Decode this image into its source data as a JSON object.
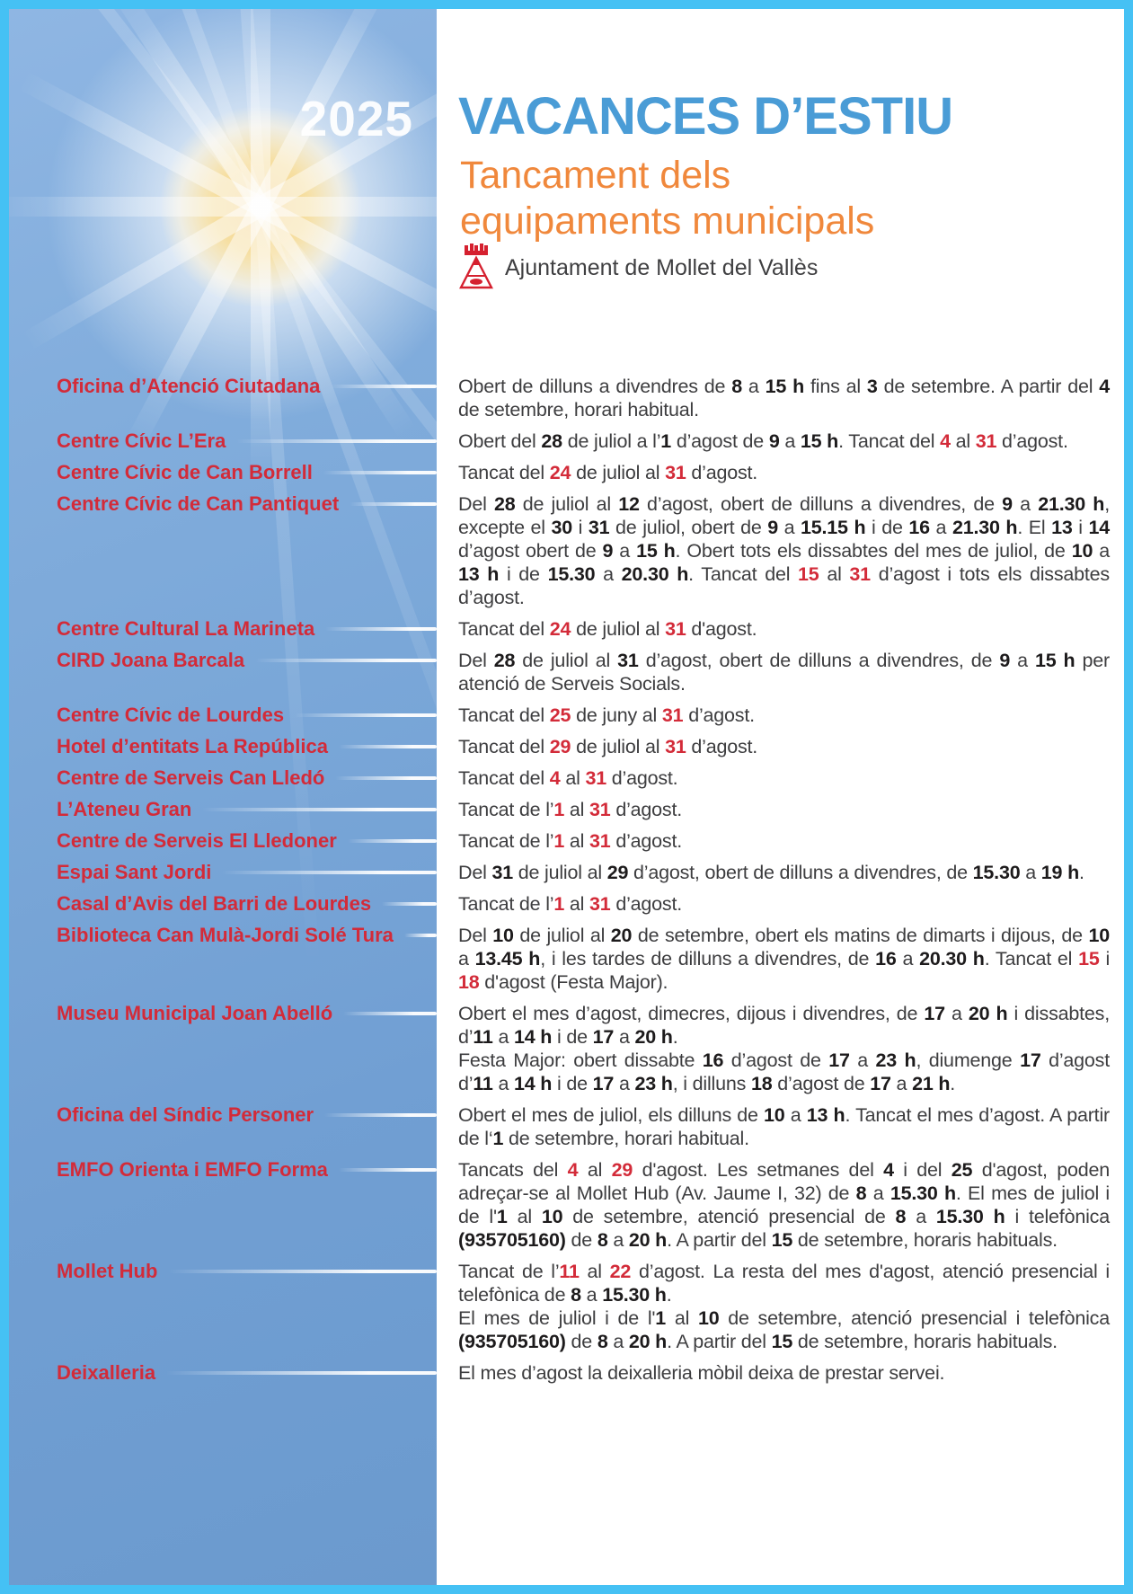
{
  "year": "2025",
  "header": {
    "title": "VACANCES D’ESTIU",
    "subtitle_lines": [
      "Tancament dels",
      "equipaments municipals"
    ],
    "org": "Ajuntament de Mollet del Vallès"
  },
  "colors": {
    "frame": "#45c1f4",
    "title_blue": "#4a9cd6",
    "subtitle_orange": "#f0883c",
    "label_red": "#d32b39",
    "body_text": "#3d3d3f",
    "bold_text": "#1d1b1c",
    "crest_red": "#d5202f"
  },
  "entries": [
    {
      "label": "Oficina d’Atenció Ciutadana",
      "runs": [
        {
          "t": "Obert de dilluns a divendres de "
        },
        {
          "t": "8",
          "s": "b"
        },
        {
          "t": " a "
        },
        {
          "t": "15 h",
          "s": "b"
        },
        {
          "t": " fins al "
        },
        {
          "t": "3",
          "s": "b"
        },
        {
          "t": " de setembre. A partir del "
        },
        {
          "t": "4",
          "s": "b"
        },
        {
          "t": " de setembre, horari habitual."
        }
      ]
    },
    {
      "label": "Centre Cívic L’Era",
      "runs": [
        {
          "t": "Obert del "
        },
        {
          "t": "28",
          "s": "b"
        },
        {
          "t": " de juliol a l’"
        },
        {
          "t": "1",
          "s": "b"
        },
        {
          "t": " d’agost de "
        },
        {
          "t": "9",
          "s": "b"
        },
        {
          "t": " a "
        },
        {
          "t": "15 h",
          "s": "b"
        },
        {
          "t": ". Tancat del "
        },
        {
          "t": "4",
          "s": "r"
        },
        {
          "t": " al "
        },
        {
          "t": "31",
          "s": "r"
        },
        {
          "t": " d’agost."
        }
      ]
    },
    {
      "label": "Centre Cívic de Can Borrell",
      "runs": [
        {
          "t": "Tancat del "
        },
        {
          "t": "24",
          "s": "r"
        },
        {
          "t": " de juliol al "
        },
        {
          "t": "31",
          "s": "r"
        },
        {
          "t": " d’agost."
        }
      ]
    },
    {
      "label": "Centre Cívic de Can Pantiquet",
      "runs": [
        {
          "t": "Del "
        },
        {
          "t": "28",
          "s": "b"
        },
        {
          "t": " de juliol al "
        },
        {
          "t": "12",
          "s": "b"
        },
        {
          "t": " d’agost, obert de dilluns a divendres, de "
        },
        {
          "t": "9",
          "s": "b"
        },
        {
          "t": " a "
        },
        {
          "t": "21.30 h",
          "s": "b"
        },
        {
          "t": ", excepte el "
        },
        {
          "t": "30",
          "s": "b"
        },
        {
          "t": " i "
        },
        {
          "t": "31",
          "s": "b"
        },
        {
          "t": " de juliol, obert de "
        },
        {
          "t": "9",
          "s": "b"
        },
        {
          "t": " a "
        },
        {
          "t": "15.15 h",
          "s": "b"
        },
        {
          "t": " i de "
        },
        {
          "t": "16",
          "s": "b"
        },
        {
          "t": " a "
        },
        {
          "t": "21.30 h",
          "s": "b"
        },
        {
          "t": ". El "
        },
        {
          "t": "13",
          "s": "b"
        },
        {
          "t": " i "
        },
        {
          "t": "14",
          "s": "b"
        },
        {
          "t": " d’agost obert de "
        },
        {
          "t": "9",
          "s": "b"
        },
        {
          "t": " a "
        },
        {
          "t": "15 h",
          "s": "b"
        },
        {
          "t": ". Obert tots els dissabtes del mes de juliol, de "
        },
        {
          "t": "10",
          "s": "b"
        },
        {
          "t": " a "
        },
        {
          "t": "13 h",
          "s": "b"
        },
        {
          "t": " i de "
        },
        {
          "t": "15.30",
          "s": "b"
        },
        {
          "t": " a "
        },
        {
          "t": "20.30 h",
          "s": "b"
        },
        {
          "t": ". Tancat del "
        },
        {
          "t": "15",
          "s": "r"
        },
        {
          "t": " al "
        },
        {
          "t": "31",
          "s": "r"
        },
        {
          "t": " d’agost i tots els dissabtes d’agost."
        }
      ]
    },
    {
      "label": "Centre Cultural La Marineta",
      "runs": [
        {
          "t": "Tancat del "
        },
        {
          "t": "24",
          "s": "r"
        },
        {
          "t": " de juliol al "
        },
        {
          "t": "31",
          "s": "r"
        },
        {
          "t": " d'agost."
        }
      ]
    },
    {
      "label": "CIRD Joana Barcala",
      "runs": [
        {
          "t": "Del "
        },
        {
          "t": "28",
          "s": "b"
        },
        {
          "t": " de juliol al "
        },
        {
          "t": "31",
          "s": "b"
        },
        {
          "t": " d’agost, obert de dilluns a divendres, de "
        },
        {
          "t": "9",
          "s": "b"
        },
        {
          "t": " a "
        },
        {
          "t": "15 h",
          "s": "b"
        },
        {
          "t": " per atenció de Serveis Socials."
        }
      ]
    },
    {
      "label": "Centre Cívic de Lourdes",
      "runs": [
        {
          "t": "Tancat del "
        },
        {
          "t": "25",
          "s": "r"
        },
        {
          "t": " de juny al "
        },
        {
          "t": "31",
          "s": "r"
        },
        {
          "t": " d’agost."
        }
      ]
    },
    {
      "label": "Hotel d’entitats La República",
      "runs": [
        {
          "t": "Tancat del "
        },
        {
          "t": "29",
          "s": "r"
        },
        {
          "t": " de juliol al "
        },
        {
          "t": "31",
          "s": "r"
        },
        {
          "t": " d’agost."
        }
      ]
    },
    {
      "label": "Centre de Serveis Can Lledó",
      "runs": [
        {
          "t": "Tancat del "
        },
        {
          "t": "4",
          "s": "r"
        },
        {
          "t": " al "
        },
        {
          "t": "31",
          "s": "r"
        },
        {
          "t": " d’agost."
        }
      ]
    },
    {
      "label": "L’Ateneu Gran",
      "runs": [
        {
          "t": "Tancat de l’"
        },
        {
          "t": "1",
          "s": "r"
        },
        {
          "t": " al "
        },
        {
          "t": "31",
          "s": "r"
        },
        {
          "t": " d’agost."
        }
      ]
    },
    {
      "label": "Centre de Serveis El Lledoner",
      "runs": [
        {
          "t": "Tancat de l’"
        },
        {
          "t": "1",
          "s": "r"
        },
        {
          "t": " al "
        },
        {
          "t": "31",
          "s": "r"
        },
        {
          "t": " d’agost."
        }
      ]
    },
    {
      "label": "Espai Sant Jordi",
      "runs": [
        {
          "t": "Del "
        },
        {
          "t": "31",
          "s": "b"
        },
        {
          "t": " de juliol al "
        },
        {
          "t": "29",
          "s": "b"
        },
        {
          "t": " d’agost, obert de dilluns a divendres, de "
        },
        {
          "t": "15.30",
          "s": "b"
        },
        {
          "t": " a "
        },
        {
          "t": "19 h",
          "s": "b"
        },
        {
          "t": "."
        }
      ]
    },
    {
      "label": "Casal d’Avis del Barri de Lourdes",
      "runs": [
        {
          "t": "Tancat de l’"
        },
        {
          "t": "1",
          "s": "r"
        },
        {
          "t": " al "
        },
        {
          "t": "31",
          "s": "r"
        },
        {
          "t": " d’agost."
        }
      ]
    },
    {
      "label": "Biblioteca Can Mulà-Jordi Solé Tura",
      "runs": [
        {
          "t": "Del "
        },
        {
          "t": "10",
          "s": "b"
        },
        {
          "t": " de juliol al "
        },
        {
          "t": "20",
          "s": "b"
        },
        {
          "t": " de setembre, obert els matins de dimarts i dijous, de "
        },
        {
          "t": "10",
          "s": "b"
        },
        {
          "t": " a "
        },
        {
          "t": "13.45 h",
          "s": "b"
        },
        {
          "t": ", i les tardes de dilluns a divendres, de "
        },
        {
          "t": "16",
          "s": "b"
        },
        {
          "t": " a "
        },
        {
          "t": "20.30 h",
          "s": "b"
        },
        {
          "t": ". Tancat el "
        },
        {
          "t": "15",
          "s": "r"
        },
        {
          "t": " i "
        },
        {
          "t": "18",
          "s": "r"
        },
        {
          "t": " d'agost (Festa Major)."
        }
      ]
    },
    {
      "label": "Museu Municipal Joan Abelló",
      "runs": [
        {
          "t": "Obert el mes d’agost, dimecres, dijous i divendres, de "
        },
        {
          "t": "17",
          "s": "b"
        },
        {
          "t": " a "
        },
        {
          "t": "20 h",
          "s": "b"
        },
        {
          "t": " i dissabtes, d’"
        },
        {
          "t": "11",
          "s": "b"
        },
        {
          "t": " a "
        },
        {
          "t": "14 h",
          "s": "b"
        },
        {
          "t": " i de "
        },
        {
          "t": "17",
          "s": "b"
        },
        {
          "t": " a "
        },
        {
          "t": "20 h",
          "s": "b"
        },
        {
          "t": "."
        },
        {
          "br": true
        },
        {
          "t": "Festa Major: obert dissabte "
        },
        {
          "t": "16",
          "s": "b"
        },
        {
          "t": " d’agost de "
        },
        {
          "t": "17",
          "s": "b"
        },
        {
          "t": " a "
        },
        {
          "t": "23 h",
          "s": "b"
        },
        {
          "t": ", diumenge "
        },
        {
          "t": "17",
          "s": "b"
        },
        {
          "t": " d’agost d’"
        },
        {
          "t": "11",
          "s": "b"
        },
        {
          "t": " a "
        },
        {
          "t": "14 h",
          "s": "b"
        },
        {
          "t": " i de "
        },
        {
          "t": "17",
          "s": "b"
        },
        {
          "t": " a "
        },
        {
          "t": "23 h",
          "s": "b"
        },
        {
          "t": ", i dilluns "
        },
        {
          "t": "18",
          "s": "b"
        },
        {
          "t": " d’agost de "
        },
        {
          "t": "17",
          "s": "b"
        },
        {
          "t": " a "
        },
        {
          "t": "21 h",
          "s": "b"
        },
        {
          "t": "."
        }
      ]
    },
    {
      "label": "Oficina del Síndic Personer",
      "runs": [
        {
          "t": "Obert el mes de juliol, els dilluns de "
        },
        {
          "t": "10",
          "s": "b"
        },
        {
          "t": " a "
        },
        {
          "t": "13 h",
          "s": "b"
        },
        {
          "t": ". Tancat el mes d’agost. A partir de l‘"
        },
        {
          "t": "1",
          "s": "b"
        },
        {
          "t": " de setembre, horari habitual."
        }
      ]
    },
    {
      "label": "EMFO Orienta i EMFO Forma",
      "runs": [
        {
          "t": "Tancats del "
        },
        {
          "t": "4",
          "s": "r"
        },
        {
          "t": " al "
        },
        {
          "t": "29",
          "s": "r"
        },
        {
          "t": " d'agost. Les setmanes del "
        },
        {
          "t": "4",
          "s": "b"
        },
        {
          "t": " i del "
        },
        {
          "t": "25",
          "s": "b"
        },
        {
          "t": " d'agost, poden adreçar-se al Mollet Hub (Av. Jaume I, 32) de "
        },
        {
          "t": "8",
          "s": "b"
        },
        {
          "t": " a "
        },
        {
          "t": "15.30 h",
          "s": "b"
        },
        {
          "t": ". El mes de juliol i de l'"
        },
        {
          "t": "1",
          "s": "b"
        },
        {
          "t": " al "
        },
        {
          "t": "10",
          "s": "b"
        },
        {
          "t": " de setembre, atenció presencial de "
        },
        {
          "t": "8",
          "s": "b"
        },
        {
          "t": " a "
        },
        {
          "t": "15.30 h",
          "s": "b"
        },
        {
          "t": " i telefònica "
        },
        {
          "t": "(935705160)",
          "s": "b"
        },
        {
          "t": " de "
        },
        {
          "t": "8",
          "s": "b"
        },
        {
          "t": " a "
        },
        {
          "t": "20 h",
          "s": "b"
        },
        {
          "t": ". A partir del "
        },
        {
          "t": "15",
          "s": "b"
        },
        {
          "t": " de setembre, horaris habituals."
        }
      ]
    },
    {
      "label": "Mollet Hub",
      "runs": [
        {
          "t": "Tancat de l’"
        },
        {
          "t": "11",
          "s": "r"
        },
        {
          "t": " al "
        },
        {
          "t": "22",
          "s": "r"
        },
        {
          "t": " d’agost. La resta del mes d'agost, atenció presencial i telefònica de "
        },
        {
          "t": "8",
          "s": "b"
        },
        {
          "t": " a "
        },
        {
          "t": "15.30 h",
          "s": "b"
        },
        {
          "t": "."
        },
        {
          "br": true
        },
        {
          "t": "El mes de juliol i de l'"
        },
        {
          "t": "1",
          "s": "b"
        },
        {
          "t": " al "
        },
        {
          "t": "10",
          "s": "b"
        },
        {
          "t": " de setembre, atenció presencial i telefònica "
        },
        {
          "t": "(935705160)",
          "s": "b"
        },
        {
          "t": " de "
        },
        {
          "t": "8",
          "s": "b"
        },
        {
          "t": " a "
        },
        {
          "t": "20 h",
          "s": "b"
        },
        {
          "t": ". A partir del "
        },
        {
          "t": "15",
          "s": "b"
        },
        {
          "t": " de setembre, horaris habituals."
        }
      ]
    },
    {
      "label": "Deixalleria",
      "runs": [
        {
          "t": "El mes d’agost la deixalleria mòbil deixa de prestar servei."
        }
      ]
    }
  ]
}
